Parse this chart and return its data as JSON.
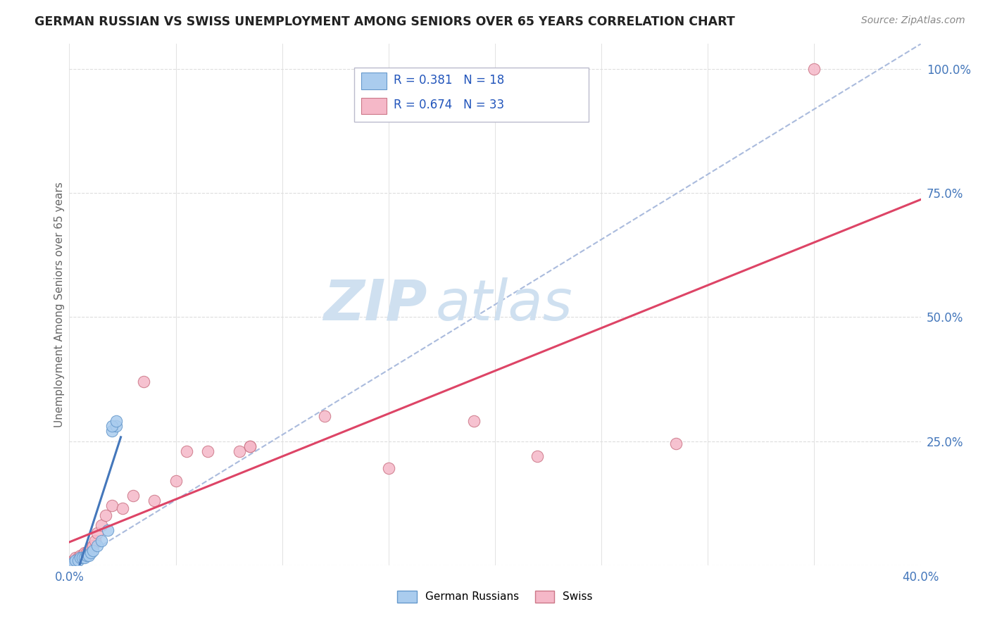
{
  "title": "GERMAN RUSSIAN VS SWISS UNEMPLOYMENT AMONG SENIORS OVER 65 YEARS CORRELATION CHART",
  "source": "Source: ZipAtlas.com",
  "ylabel": "Unemployment Among Seniors over 65 years",
  "xlim": [
    0.0,
    0.4
  ],
  "ylim": [
    0.0,
    1.05
  ],
  "xticks": [
    0.0,
    0.05,
    0.1,
    0.15,
    0.2,
    0.25,
    0.3,
    0.35,
    0.4
  ],
  "ytick_positions": [
    0.0,
    0.25,
    0.5,
    0.75,
    1.0
  ],
  "yticklabels": [
    "",
    "25.0%",
    "50.0%",
    "75.0%",
    "100.0%"
  ],
  "background_color": "#ffffff",
  "grid_color": "#dddddd",
  "watermark_text": "ZIPatlas",
  "watermark_color": "#cfe0f0",
  "gr_x": [
    0.0,
    0.002,
    0.003,
    0.004,
    0.005,
    0.006,
    0.007,
    0.008,
    0.009,
    0.01,
    0.011,
    0.013,
    0.015,
    0.018,
    0.02,
    0.022,
    0.02,
    0.022
  ],
  "gr_y": [
    0.0,
    0.005,
    0.01,
    0.01,
    0.015,
    0.015,
    0.015,
    0.02,
    0.02,
    0.025,
    0.03,
    0.04,
    0.05,
    0.07,
    0.27,
    0.28,
    0.28,
    0.29
  ],
  "gr_color": "#aaccee",
  "gr_edge": "#6699cc",
  "gr_line_color": "#4477bb",
  "gr_R": 0.381,
  "gr_N": 18,
  "sw_x": [
    0.0,
    0.001,
    0.002,
    0.003,
    0.004,
    0.005,
    0.006,
    0.007,
    0.008,
    0.009,
    0.01,
    0.011,
    0.012,
    0.013,
    0.015,
    0.017,
    0.02,
    0.025,
    0.03,
    0.035,
    0.04,
    0.05,
    0.055,
    0.065,
    0.08,
    0.085,
    0.085,
    0.12,
    0.15,
    0.19,
    0.22,
    0.285,
    0.35
  ],
  "sw_y": [
    0.0,
    0.005,
    0.01,
    0.015,
    0.015,
    0.02,
    0.02,
    0.025,
    0.025,
    0.03,
    0.035,
    0.04,
    0.05,
    0.065,
    0.08,
    0.1,
    0.12,
    0.115,
    0.14,
    0.37,
    0.13,
    0.17,
    0.23,
    0.23,
    0.23,
    0.24,
    0.24,
    0.3,
    0.195,
    0.29,
    0.22,
    0.245,
    1.0
  ],
  "sw_color": "#f5b8c8",
  "sw_edge": "#cc7788",
  "sw_line_color": "#dd4466",
  "sw_R": 0.674,
  "sw_N": 33,
  "ref_line_color": "#aabbdd",
  "ref_line_style": "--"
}
